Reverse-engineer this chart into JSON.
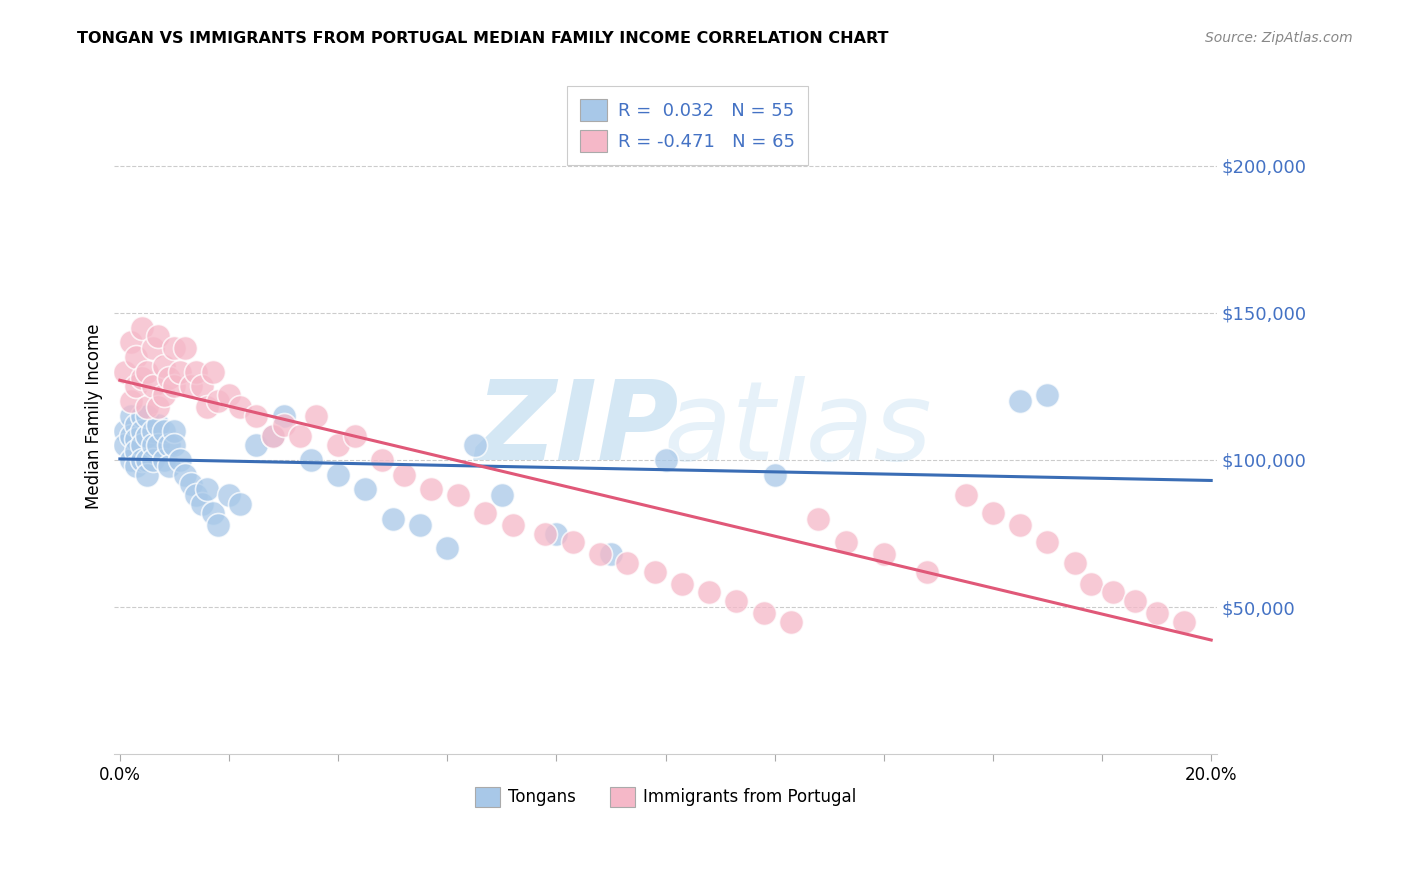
{
  "title": "TONGAN VS IMMIGRANTS FROM PORTUGAL MEDIAN FAMILY INCOME CORRELATION CHART",
  "source": "Source: ZipAtlas.com",
  "ylabel": "Median Family Income",
  "ytick_labels": [
    "$50,000",
    "$100,000",
    "$150,000",
    "$200,000"
  ],
  "ytick_values": [
    50000,
    100000,
    150000,
    200000
  ],
  "ylim": [
    0,
    230000
  ],
  "xlim": [
    -0.001,
    0.201
  ],
  "legend_r1": "R =  0.032   N = 55",
  "legend_r2": "R = -0.471   N = 65",
  "legend_label1": "Tongans",
  "legend_label2": "Immigrants from Portugal",
  "color_blue": "#a8c8e8",
  "color_pink": "#f5b8c8",
  "line_color_blue": "#3a6db5",
  "line_color_pink": "#e05878",
  "blue_x": [
    0.001,
    0.001,
    0.002,
    0.002,
    0.002,
    0.003,
    0.003,
    0.003,
    0.003,
    0.004,
    0.004,
    0.004,
    0.004,
    0.005,
    0.005,
    0.005,
    0.005,
    0.006,
    0.006,
    0.006,
    0.007,
    0.007,
    0.008,
    0.008,
    0.009,
    0.009,
    0.01,
    0.01,
    0.011,
    0.012,
    0.013,
    0.014,
    0.015,
    0.016,
    0.017,
    0.018,
    0.02,
    0.022,
    0.025,
    0.028,
    0.03,
    0.035,
    0.04,
    0.045,
    0.05,
    0.055,
    0.06,
    0.065,
    0.07,
    0.08,
    0.09,
    0.1,
    0.12,
    0.165,
    0.17
  ],
  "blue_y": [
    110000,
    105000,
    115000,
    108000,
    100000,
    112000,
    107000,
    103000,
    98000,
    115000,
    110000,
    105000,
    100000,
    108000,
    115000,
    100000,
    95000,
    110000,
    105000,
    100000,
    112000,
    105000,
    110000,
    100000,
    105000,
    98000,
    110000,
    105000,
    100000,
    95000,
    92000,
    88000,
    85000,
    90000,
    82000,
    78000,
    88000,
    85000,
    105000,
    108000,
    115000,
    100000,
    95000,
    90000,
    80000,
    78000,
    70000,
    105000,
    88000,
    75000,
    68000,
    100000,
    95000,
    120000,
    122000
  ],
  "pink_x": [
    0.001,
    0.002,
    0.002,
    0.003,
    0.003,
    0.004,
    0.004,
    0.005,
    0.005,
    0.006,
    0.006,
    0.007,
    0.007,
    0.008,
    0.008,
    0.009,
    0.01,
    0.01,
    0.011,
    0.012,
    0.013,
    0.014,
    0.015,
    0.016,
    0.017,
    0.018,
    0.02,
    0.022,
    0.025,
    0.028,
    0.03,
    0.033,
    0.036,
    0.04,
    0.043,
    0.048,
    0.052,
    0.057,
    0.062,
    0.067,
    0.072,
    0.078,
    0.083,
    0.088,
    0.093,
    0.098,
    0.103,
    0.108,
    0.113,
    0.118,
    0.123,
    0.128,
    0.133,
    0.14,
    0.148,
    0.155,
    0.16,
    0.165,
    0.17,
    0.175,
    0.178,
    0.182,
    0.186,
    0.19,
    0.195
  ],
  "pink_y": [
    130000,
    140000,
    120000,
    135000,
    125000,
    145000,
    128000,
    130000,
    118000,
    138000,
    125000,
    142000,
    118000,
    132000,
    122000,
    128000,
    138000,
    125000,
    130000,
    138000,
    125000,
    130000,
    125000,
    118000,
    130000,
    120000,
    122000,
    118000,
    115000,
    108000,
    112000,
    108000,
    115000,
    105000,
    108000,
    100000,
    95000,
    90000,
    88000,
    82000,
    78000,
    75000,
    72000,
    68000,
    65000,
    62000,
    58000,
    55000,
    52000,
    48000,
    45000,
    80000,
    72000,
    68000,
    62000,
    88000,
    82000,
    78000,
    72000,
    65000,
    58000,
    55000,
    52000,
    48000,
    45000
  ]
}
